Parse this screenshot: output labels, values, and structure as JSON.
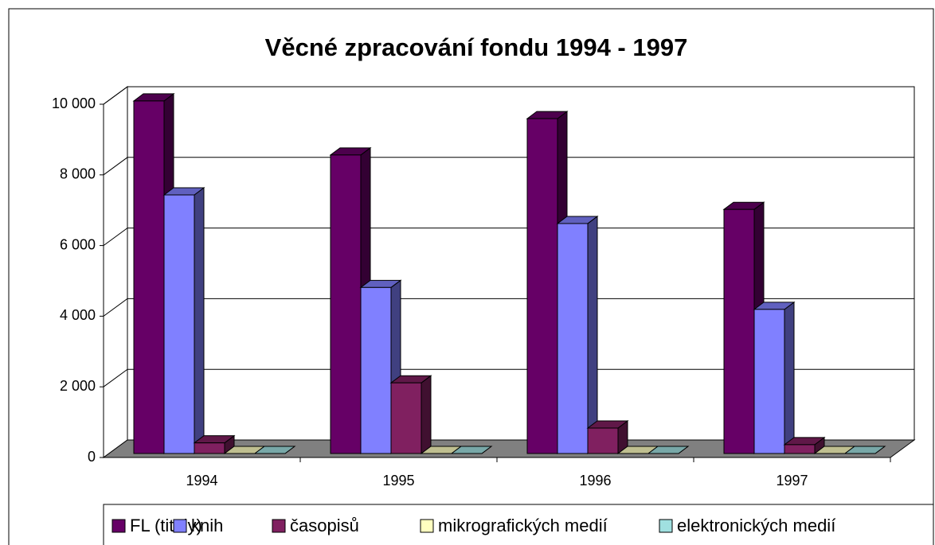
{
  "chart_data": {
    "type": "bar",
    "title": "Věcné zpracování fondu 1994 - 1997",
    "categories": [
      "1994",
      "1995",
      "1996",
      "1997"
    ],
    "series": [
      {
        "name": "FL (tituly)",
        "color": "#660066",
        "values": [
          9980,
          8450,
          9480,
          6910
        ]
      },
      {
        "name": "knih",
        "color": "#8080ff",
        "values": [
          7320,
          4700,
          6510,
          4080
        ]
      },
      {
        "name": "časopisů",
        "color": "#802060",
        "values": [
          300,
          2000,
          720,
          250
        ]
      },
      {
        "name": "mikrografických medií",
        "color": "#ffffc0",
        "values": [
          0,
          0,
          0,
          0
        ]
      },
      {
        "name": "elektronických medií",
        "color": "#a0e0e0",
        "values": [
          0,
          0,
          0,
          0
        ]
      }
    ],
    "ylim": [
      0,
      10000
    ],
    "yticks": [
      0,
      {
        "value": 2000,
        "label": "2 000"
      },
      {
        "value": 4000,
        "label": "4 000"
      },
      {
        "value": 6000,
        "label": "6 000"
      },
      {
        "value": 8000,
        "label": "8 000"
      },
      {
        "value": 10000,
        "label": "10 000"
      }
    ],
    "grid": true
  }
}
